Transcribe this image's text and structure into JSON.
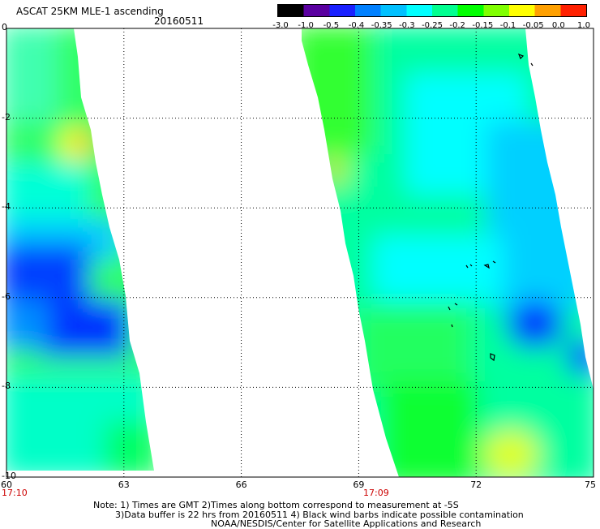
{
  "header": {
    "title": "ASCAT 25KM MLE-1 ascending",
    "date": "20160511"
  },
  "colorbar": {
    "labels": [
      "-3.0",
      "-1.0",
      "-0.5",
      "-0.4",
      "-0.35",
      "-0.3",
      "-0.25",
      "-0.2",
      "-0.15",
      "-0.1",
      "-0.05",
      "0.0",
      "1.0"
    ],
    "colors": [
      "#000000",
      "#5a00a0",
      "#1a20ff",
      "#0080ff",
      "#00c0ff",
      "#00ffff",
      "#00ff90",
      "#00ff00",
      "#80ff00",
      "#ffff00",
      "#ffa000",
      "#ff2000"
    ]
  },
  "map": {
    "y_labels": [
      "0",
      "-2",
      "-4",
      "-6",
      "-8",
      "-10"
    ],
    "x_labels": [
      "60",
      "63",
      "66",
      "69",
      "72",
      "75"
    ],
    "lat_range": [
      0,
      -10
    ],
    "lon_range": [
      60,
      75
    ],
    "pass_times": [
      "17:10",
      "17:09"
    ],
    "swaths": [
      {
        "name": "left swath",
        "lon_range": [
          60.0,
          63.9
        ]
      },
      {
        "name": "right swath",
        "lon_range": [
          67.6,
          75.0
        ]
      }
    ]
  },
  "notes": {
    "line1": "Note: 1) Times are GMT 2)Times along bottom correspond to measurement at -5S",
    "line2": "3)Data buffer is 22 hrs from 20160511 4) Black wind barbs indicate possible contamination",
    "line3": "NOAA/NESDIS/Center for Satellite Applications and Research"
  }
}
